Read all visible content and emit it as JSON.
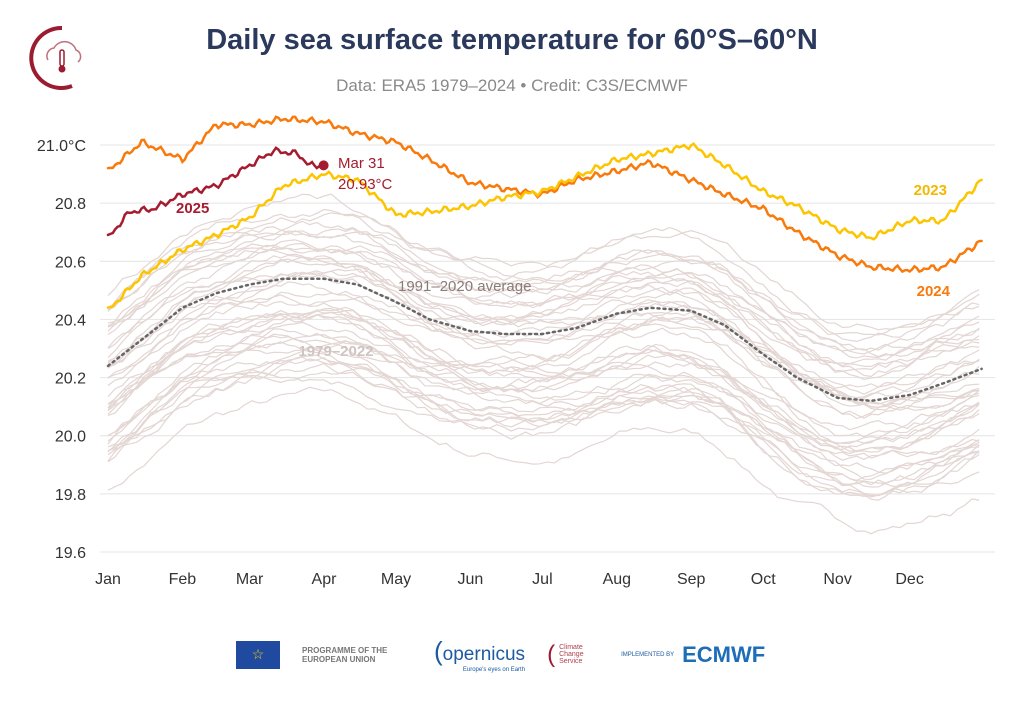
{
  "header": {
    "title": "Daily sea surface temperature for 60°S–60°N",
    "subtitle": "Data: ERA5 1979–2024 • Credit: C3S/ECMWF"
  },
  "footer": {
    "eu": "PROGRAMME OF THE EUROPEAN UNION",
    "copernicus": "opernicus",
    "copernicus_tag": "Europe's eyes on Earth",
    "c3s": "Climate Change Service",
    "implemented": "IMPLEMENTED BY",
    "ecmwf": "ECMWF"
  },
  "chart_data": {
    "type": "line",
    "title": "Daily sea surface temperature for 60°S–60°N",
    "ylim": [
      19.6,
      21.1
    ],
    "yticks": [
      {
        "v": 19.6,
        "label": "19.6"
      },
      {
        "v": 19.8,
        "label": "19.8"
      },
      {
        "v": 20.0,
        "label": "20.0"
      },
      {
        "v": 20.2,
        "label": "20.2"
      },
      {
        "v": 20.4,
        "label": "20.4"
      },
      {
        "v": 20.6,
        "label": "20.6"
      },
      {
        "v": 20.8,
        "label": "20.8"
      },
      {
        "v": 21.0,
        "label": "21.0°C"
      }
    ],
    "xticks": [
      {
        "day": 1,
        "label": "Jan"
      },
      {
        "day": 32,
        "label": "Feb"
      },
      {
        "day": 60,
        "label": "Mar"
      },
      {
        "day": 91,
        "label": "Apr"
      },
      {
        "day": 121,
        "label": "May"
      },
      {
        "day": 152,
        "label": "Jun"
      },
      {
        "day": 182,
        "label": "Jul"
      },
      {
        "day": 213,
        "label": "Aug"
      },
      {
        "day": 244,
        "label": "Sep"
      },
      {
        "day": 274,
        "label": "Oct"
      },
      {
        "day": 305,
        "label": "Nov"
      },
      {
        "day": 335,
        "label": "Dec"
      }
    ],
    "grid": true,
    "series": [
      {
        "name": "2024",
        "color": "#f97a0c",
        "day": [
          1,
          15,
          32,
          46,
          60,
          74,
          91,
          105,
          121,
          135,
          152,
          166,
          182,
          196,
          213,
          227,
          244,
          258,
          274,
          288,
          305,
          319,
          335,
          349,
          365
        ],
        "values": [
          20.91,
          21.01,
          20.95,
          21.07,
          21.07,
          21.09,
          21.08,
          21.04,
          21.01,
          20.95,
          20.87,
          20.85,
          20.83,
          20.88,
          20.91,
          20.94,
          20.88,
          20.83,
          20.78,
          20.7,
          20.62,
          20.58,
          20.57,
          20.58,
          20.67
        ]
      },
      {
        "name": "2023",
        "color": "#fcc500",
        "day": [
          1,
          15,
          32,
          46,
          60,
          74,
          91,
          105,
          121,
          135,
          152,
          166,
          182,
          196,
          213,
          227,
          244,
          258,
          274,
          288,
          305,
          319,
          335,
          349,
          365
        ],
        "values": [
          20.43,
          20.55,
          20.64,
          20.69,
          20.75,
          20.86,
          20.9,
          20.88,
          20.76,
          20.77,
          20.79,
          20.82,
          20.84,
          20.89,
          20.95,
          20.97,
          21.0,
          20.93,
          20.84,
          20.79,
          20.71,
          20.68,
          20.74,
          20.74,
          20.88
        ]
      },
      {
        "name": "2025",
        "color": "#a51c30",
        "day": [
          1,
          10,
          20,
          32,
          46,
          60,
          70,
          80,
          85,
          90
        ],
        "values": [
          20.68,
          20.77,
          20.78,
          20.83,
          20.86,
          20.93,
          20.98,
          20.97,
          20.93,
          20.93
        ]
      },
      {
        "name": "1991–2020 average",
        "color": "#666666",
        "dashed": true,
        "day": [
          1,
          15,
          32,
          46,
          60,
          74,
          91,
          105,
          121,
          135,
          152,
          166,
          182,
          196,
          213,
          227,
          244,
          258,
          274,
          288,
          305,
          319,
          335,
          349,
          365
        ],
        "values": [
          20.24,
          20.33,
          20.44,
          20.49,
          20.52,
          20.54,
          20.54,
          20.52,
          20.46,
          20.4,
          20.36,
          20.35,
          20.35,
          20.37,
          20.42,
          20.44,
          20.43,
          20.38,
          20.28,
          20.2,
          20.13,
          20.12,
          20.14,
          20.18,
          20.23
        ]
      }
    ],
    "background_label": "1979–2022",
    "background_color": "#e3d6d3",
    "annotation": {
      "date": "Mar 31",
      "value": "20.93°C",
      "day": 90,
      "v": 20.93
    }
  }
}
